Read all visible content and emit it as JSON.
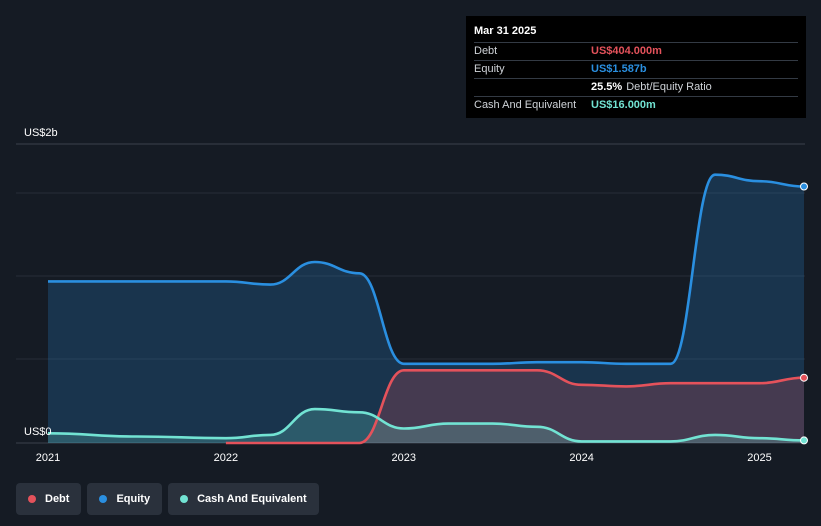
{
  "tooltip": {
    "date": "Mar 31 2025",
    "debt_label": "Debt",
    "debt_value": "US$404.000m",
    "equity_label": "Equity",
    "equity_value": "US$1.587b",
    "ratio_value": "25.5%",
    "ratio_label": "Debt/Equity Ratio",
    "cash_label": "Cash And Equivalent",
    "cash_value": "US$16.000m"
  },
  "colors": {
    "debt": "#e4525b",
    "equity": "#2a8fe0",
    "cash": "#72e3d3"
  },
  "legend": [
    {
      "label": "Debt",
      "color": "#e4525b"
    },
    {
      "label": "Equity",
      "color": "#2a8fe0"
    },
    {
      "label": "Cash And Equivalent",
      "color": "#72e3d3"
    }
  ],
  "chart_data": {
    "type": "area",
    "y_top_label": "US$2b",
    "y_zero_label": "US$0",
    "ylim": [
      0,
      1.85
    ],
    "xlim": [
      2021.0,
      2025.25
    ],
    "x_ticks": [
      {
        "value": 2021,
        "label": "2021"
      },
      {
        "value": 2022,
        "label": "2022"
      },
      {
        "value": 2023,
        "label": "2023"
      },
      {
        "value": 2024,
        "label": "2024"
      },
      {
        "value": 2025,
        "label": "2025"
      }
    ],
    "series": [
      {
        "name": "Equity",
        "x": [
          2021.0,
          2022.0,
          2022.25,
          2022.5,
          2022.75,
          2023.0,
          2023.25,
          2023.5,
          2023.75,
          2024.0,
          2024.25,
          2024.5,
          2024.75,
          2025.0,
          2025.25
        ],
        "values": [
          1.0,
          1.0,
          0.98,
          1.12,
          1.05,
          0.49,
          0.49,
          0.49,
          0.5,
          0.5,
          0.49,
          0.49,
          1.66,
          1.62,
          1.587
        ]
      },
      {
        "name": "Debt",
        "x": [
          2022.0,
          2022.25,
          2022.5,
          2022.75,
          2023.0,
          2023.25,
          2023.5,
          2023.75,
          2024.0,
          2024.25,
          2024.5,
          2024.75,
          2025.0,
          2025.25
        ],
        "values": [
          0.0,
          0.0,
          0.0,
          0.0,
          0.45,
          0.45,
          0.45,
          0.45,
          0.36,
          0.35,
          0.37,
          0.37,
          0.37,
          0.404
        ]
      },
      {
        "name": "Cash And Equivalent",
        "x": [
          2021.0,
          2021.5,
          2022.0,
          2022.25,
          2022.5,
          2022.75,
          2023.0,
          2023.25,
          2023.5,
          2023.75,
          2024.0,
          2024.25,
          2024.5,
          2024.75,
          2025.0,
          2025.25
        ],
        "values": [
          0.06,
          0.04,
          0.03,
          0.05,
          0.21,
          0.19,
          0.09,
          0.12,
          0.12,
          0.1,
          0.01,
          0.01,
          0.01,
          0.05,
          0.03,
          0.016
        ]
      }
    ]
  }
}
